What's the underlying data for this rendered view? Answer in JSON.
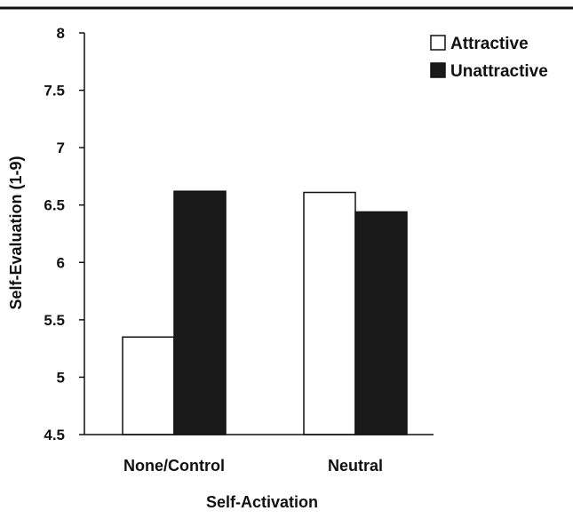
{
  "chart_data": {
    "type": "bar",
    "categories": [
      "None/Control",
      "Neutral"
    ],
    "series": [
      {
        "name": "Attractive",
        "values": [
          5.35,
          6.61
        ],
        "color": "#ffffff"
      },
      {
        "name": "Unattractive",
        "values": [
          6.62,
          6.44
        ],
        "color": "#1a1a1a"
      }
    ],
    "ylabel": "Self-Evaluation (1-9)",
    "xlabel": "Self-Activation",
    "ylim": [
      4.5,
      8
    ],
    "yticks": [
      4.5,
      5,
      5.5,
      6,
      6.5,
      7,
      7.5,
      8
    ],
    "ytick_labels": [
      "4.5",
      "5",
      "5.5",
      "6",
      "6.5",
      "7",
      "7.5",
      "8"
    ],
    "legend_position": "top-right",
    "grid": false
  }
}
